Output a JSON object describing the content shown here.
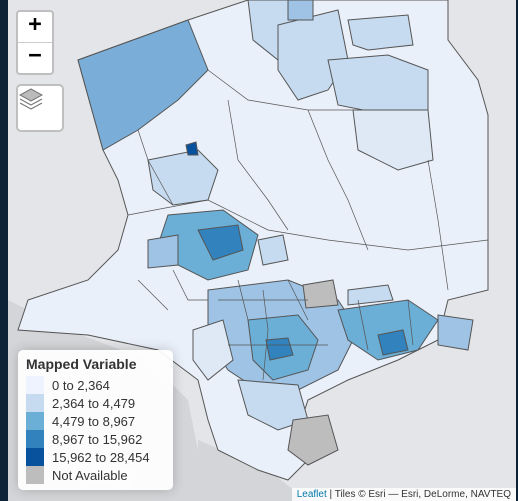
{
  "controls": {
    "zoom_in": "+",
    "zoom_out": "−"
  },
  "legend": {
    "title": "Mapped Variable",
    "items": [
      {
        "label": "0 to 2,364",
        "color": "#eff3ff"
      },
      {
        "label": "2,364 to 4,479",
        "color": "#c6dbef"
      },
      {
        "label": "4,479 to 8,967",
        "color": "#6baed6"
      },
      {
        "label": "8,967 to 15,962",
        "color": "#3182bd"
      },
      {
        "label": "15,962 to 28,454",
        "color": "#08519c"
      },
      {
        "label": "Not Available",
        "color": "#bdbdbd"
      }
    ]
  },
  "attribution": {
    "leaflet": "Leaflet",
    "tiles": "| Tiles © Esri — Esri, DeLorme, NAVTEQ"
  },
  "colors": {
    "background": "#e4e5e8",
    "boundary": "#555555",
    "ocean": "#d7d8da"
  }
}
